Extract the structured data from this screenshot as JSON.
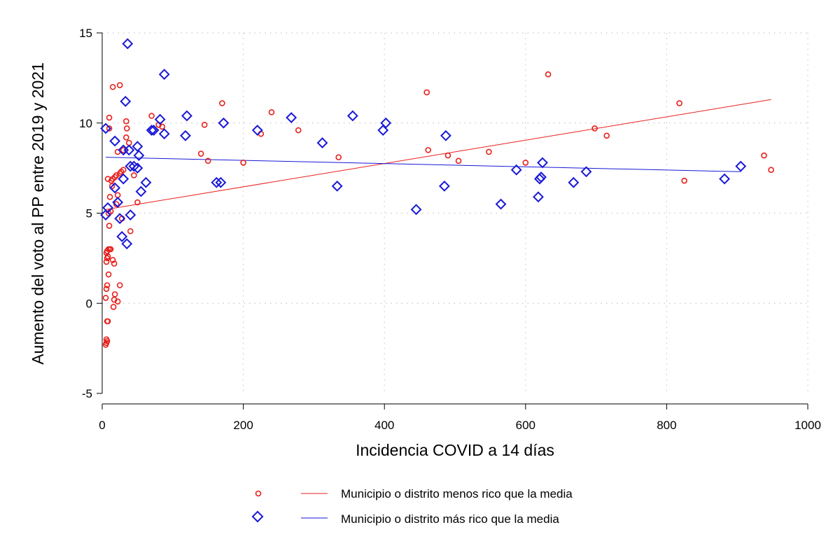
{
  "chart_data": {
    "type": "scatter",
    "xlabel": "Incidencia COVID a 14 días",
    "ylabel": "Aumento del voto al PP entre 2019 y 2021",
    "xlim": [
      0,
      1000
    ],
    "ylim": [
      -5,
      15
    ],
    "xticks": [
      "0",
      "200",
      "400",
      "600",
      "800",
      "1000"
    ],
    "yticks": [
      "-5",
      "0",
      "5",
      "10",
      "15"
    ],
    "grid": true,
    "legend_position": "bottom",
    "series": [
      {
        "name": "Municipio o distrito menos rico que la media",
        "marker": "circle",
        "color": "#e8201c",
        "points": [
          [
            5,
            -2.3
          ],
          [
            6,
            -2.2
          ],
          [
            7,
            -2.1
          ],
          [
            6,
            -2.0
          ],
          [
            7,
            -1.0
          ],
          [
            8,
            -1.0
          ],
          [
            5,
            0.3
          ],
          [
            6,
            0.8
          ],
          [
            7,
            1.0
          ],
          [
            9,
            1.6
          ],
          [
            6,
            2.3
          ],
          [
            7,
            2.5
          ],
          [
            8,
            2.6
          ],
          [
            6,
            2.8
          ],
          [
            7,
            2.9
          ],
          [
            9,
            3.0
          ],
          [
            11,
            3.0
          ],
          [
            12,
            3.0
          ],
          [
            10,
            4.3
          ],
          [
            9,
            5.0
          ],
          [
            12,
            5.1
          ],
          [
            11,
            5.9
          ],
          [
            14,
            6.5
          ],
          [
            13,
            6.8
          ],
          [
            15,
            6.9
          ],
          [
            18,
            7.0
          ],
          [
            20,
            7.1
          ],
          [
            8,
            6.9
          ],
          [
            15,
            2.4
          ],
          [
            16,
            -0.2
          ],
          [
            17,
            0.2
          ],
          [
            18,
            0.5
          ],
          [
            17,
            2.2
          ],
          [
            22,
            0.1
          ],
          [
            25,
            1.0
          ],
          [
            20,
            5.5
          ],
          [
            22,
            6.0
          ],
          [
            25,
            7.2
          ],
          [
            27,
            7.3
          ],
          [
            30,
            7.4
          ],
          [
            28,
            4.7
          ],
          [
            40,
            4.0
          ],
          [
            22,
            8.4
          ],
          [
            30,
            8.5
          ],
          [
            34,
            9.2
          ],
          [
            35,
            9.7
          ],
          [
            38,
            8.9
          ],
          [
            34,
            10.1
          ],
          [
            15,
            12.0
          ],
          [
            25,
            12.1
          ],
          [
            10,
            9.7
          ],
          [
            10,
            10.3
          ],
          [
            45,
            7.1
          ],
          [
            50,
            5.6
          ],
          [
            70,
            10.4
          ],
          [
            80,
            9.9
          ],
          [
            85,
            9.8
          ],
          [
            140,
            8.3
          ],
          [
            145,
            9.9
          ],
          [
            150,
            7.9
          ],
          [
            170,
            11.1
          ],
          [
            200,
            7.8
          ],
          [
            225,
            9.4
          ],
          [
            240,
            10.6
          ],
          [
            278,
            9.6
          ],
          [
            335,
            8.1
          ],
          [
            460,
            11.7
          ],
          [
            462,
            8.5
          ],
          [
            490,
            8.2
          ],
          [
            505,
            7.9
          ],
          [
            548,
            8.4
          ],
          [
            600,
            7.8
          ],
          [
            632,
            12.7
          ],
          [
            698,
            9.7
          ],
          [
            715,
            9.3
          ],
          [
            818,
            11.1
          ],
          [
            825,
            6.8
          ],
          [
            938,
            8.2
          ],
          [
            948,
            7.4
          ]
        ],
        "fit": [
          [
            5,
            5.2
          ],
          [
            948,
            11.3
          ]
        ]
      },
      {
        "name": "Municipio o distrito más rico que la media",
        "marker": "diamond",
        "color": "#1818d8",
        "points": [
          [
            36,
            14.4
          ],
          [
            88,
            12.7
          ],
          [
            33,
            11.2
          ],
          [
            5,
            9.7
          ],
          [
            18,
            9.0
          ],
          [
            30,
            8.5
          ],
          [
            38,
            8.5
          ],
          [
            50,
            8.7
          ],
          [
            52,
            8.2
          ],
          [
            40,
            7.6
          ],
          [
            45,
            7.6
          ],
          [
            50,
            7.5
          ],
          [
            30,
            6.9
          ],
          [
            8,
            5.3
          ],
          [
            5,
            4.9
          ],
          [
            18,
            6.4
          ],
          [
            22,
            5.6
          ],
          [
            40,
            4.9
          ],
          [
            55,
            6.2
          ],
          [
            62,
            6.7
          ],
          [
            28,
            3.7
          ],
          [
            35,
            3.3
          ],
          [
            25,
            4.7
          ],
          [
            70,
            9.6
          ],
          [
            73,
            9.6
          ],
          [
            82,
            10.2
          ],
          [
            88,
            9.4
          ],
          [
            118,
            9.3
          ],
          [
            120,
            10.4
          ],
          [
            162,
            6.7
          ],
          [
            168,
            6.7
          ],
          [
            172,
            10.0
          ],
          [
            220,
            9.6
          ],
          [
            268,
            10.3
          ],
          [
            312,
            8.9
          ],
          [
            333,
            6.5
          ],
          [
            355,
            10.4
          ],
          [
            398,
            9.6
          ],
          [
            402,
            10.0
          ],
          [
            445,
            5.2
          ],
          [
            485,
            6.5
          ],
          [
            487,
            9.3
          ],
          [
            565,
            5.5
          ],
          [
            587,
            7.4
          ],
          [
            618,
            5.9
          ],
          [
            620,
            6.9
          ],
          [
            622,
            7.0
          ],
          [
            624,
            7.8
          ],
          [
            668,
            6.7
          ],
          [
            686,
            7.3
          ],
          [
            882,
            6.9
          ],
          [
            905,
            7.6
          ]
        ],
        "fit": [
          [
            5,
            8.1
          ],
          [
            905,
            7.3
          ]
        ]
      }
    ]
  }
}
